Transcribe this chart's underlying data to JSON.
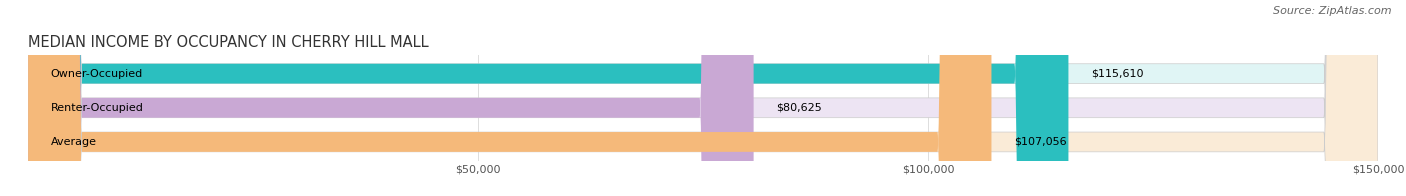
{
  "title": "MEDIAN INCOME BY OCCUPANCY IN CHERRY HILL MALL",
  "source": "Source: ZipAtlas.com",
  "categories": [
    "Owner-Occupied",
    "Renter-Occupied",
    "Average"
  ],
  "values": [
    115610,
    80625,
    107056
  ],
  "labels": [
    "$115,610",
    "$80,625",
    "$107,056"
  ],
  "bar_colors": [
    "#2bbfbf",
    "#c9a8d4",
    "#f5b97a"
  ],
  "bar_bg_colors": [
    "#e0f5f5",
    "#ede4f3",
    "#faebd7"
  ],
  "xlim": [
    0,
    150000
  ],
  "xticks": [
    50000,
    100000,
    150000
  ],
  "xtick_labels": [
    "$50,000",
    "$100,000",
    "$150,000"
  ],
  "title_fontsize": 10.5,
  "source_fontsize": 8,
  "label_fontsize": 8,
  "bar_label_fontsize": 8,
  "background_color": "#ffffff",
  "bar_height": 0.58
}
